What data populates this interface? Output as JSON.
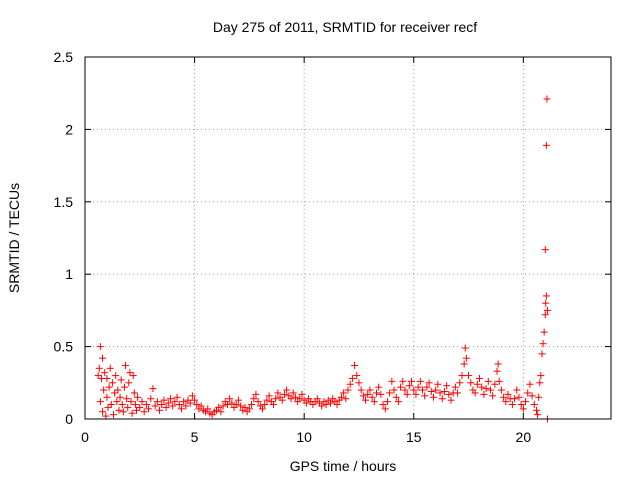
{
  "chart_data": {
    "type": "scatter",
    "title": "Day 275 of 2011, SRMTID for receiver recf",
    "xlabel": "GPS time / hours",
    "ylabel": "SRMTID / TECUs",
    "xlim": [
      0,
      24
    ],
    "ylim": [
      0,
      2.5
    ],
    "xticks": [
      0,
      5,
      10,
      15,
      20
    ],
    "yticks": [
      0,
      0.5,
      1,
      1.5,
      2,
      2.5
    ],
    "xtick_labels": [
      "0",
      "5",
      "10",
      "15",
      "20"
    ],
    "ytick_labels": [
      "0",
      "0.5",
      "1",
      "1.5",
      "2",
      "2.5"
    ],
    "grid": true,
    "marker": "plus",
    "color": "#ff0000",
    "series": [
      {
        "values": [
          [
            0.6,
            0.3
          ],
          [
            0.65,
            0.35
          ],
          [
            0.7,
            0.5
          ],
          [
            0.7,
            0.12
          ],
          [
            0.75,
            0.28
          ],
          [
            0.8,
            0.42
          ],
          [
            0.8,
            0.05
          ],
          [
            0.85,
            0.2
          ],
          [
            0.9,
            0.32
          ],
          [
            0.95,
            0.02
          ],
          [
            1.0,
            0.15
          ],
          [
            1.0,
            0.28
          ],
          [
            1.05,
            0.08
          ],
          [
            1.1,
            0.22
          ],
          [
            1.15,
            0.35
          ],
          [
            1.2,
            0.1
          ],
          [
            1.25,
            0.25
          ],
          [
            1.3,
            0.03
          ],
          [
            1.35,
            0.18
          ],
          [
            1.4,
            0.3
          ],
          [
            1.45,
            0.12
          ],
          [
            1.5,
            0.2
          ],
          [
            1.55,
            0.06
          ],
          [
            1.6,
            0.15
          ],
          [
            1.65,
            0.27
          ],
          [
            1.7,
            0.1
          ],
          [
            1.75,
            0.05
          ],
          [
            1.8,
            0.22
          ],
          [
            1.85,
            0.37
          ],
          [
            1.9,
            0.14
          ],
          [
            1.95,
            0.08
          ],
          [
            2.0,
            0.25
          ],
          [
            2.05,
            0.32
          ],
          [
            2.1,
            0.12
          ],
          [
            2.15,
            0.04
          ],
          [
            2.2,
            0.3
          ],
          [
            2.25,
            0.18
          ],
          [
            2.3,
            0.1
          ],
          [
            2.35,
            0.06
          ],
          [
            2.4,
            0.15
          ],
          [
            2.5,
            0.08
          ],
          [
            2.6,
            0.12
          ],
          [
            2.7,
            0.05
          ],
          [
            2.8,
            0.1
          ],
          [
            2.9,
            0.07
          ],
          [
            3.0,
            0.14
          ],
          [
            3.1,
            0.21
          ],
          [
            3.2,
            0.09
          ],
          [
            3.3,
            0.12
          ],
          [
            3.4,
            0.06
          ],
          [
            3.5,
            0.1
          ],
          [
            3.6,
            0.13
          ],
          [
            3.7,
            0.08
          ],
          [
            3.8,
            0.11
          ],
          [
            3.9,
            0.14
          ],
          [
            4.0,
            0.09
          ],
          [
            4.1,
            0.12
          ],
          [
            4.2,
            0.15
          ],
          [
            4.3,
            0.1
          ],
          [
            4.4,
            0.07
          ],
          [
            4.5,
            0.12
          ],
          [
            4.6,
            0.09
          ],
          [
            4.7,
            0.13
          ],
          [
            4.8,
            0.11
          ],
          [
            4.9,
            0.16
          ],
          [
            5.0,
            0.13
          ],
          [
            5.1,
            0.1
          ],
          [
            5.2,
            0.07
          ],
          [
            5.3,
            0.09
          ],
          [
            5.4,
            0.06
          ],
          [
            5.5,
            0.05
          ],
          [
            5.6,
            0.07
          ],
          [
            5.7,
            0.04
          ],
          [
            5.8,
            0.03
          ],
          [
            5.9,
            0.05
          ],
          [
            6.0,
            0.06
          ],
          [
            6.1,
            0.08
          ],
          [
            6.2,
            0.05
          ],
          [
            6.3,
            0.09
          ],
          [
            6.4,
            0.12
          ],
          [
            6.5,
            0.1
          ],
          [
            6.6,
            0.14
          ],
          [
            6.7,
            0.11
          ],
          [
            6.8,
            0.08
          ],
          [
            6.9,
            0.1
          ],
          [
            7.0,
            0.13
          ],
          [
            7.1,
            0.09
          ],
          [
            7.2,
            0.06
          ],
          [
            7.3,
            0.08
          ],
          [
            7.4,
            0.05
          ],
          [
            7.5,
            0.07
          ],
          [
            7.6,
            0.1
          ],
          [
            7.7,
            0.14
          ],
          [
            7.8,
            0.17
          ],
          [
            7.9,
            0.12
          ],
          [
            8.0,
            0.09
          ],
          [
            8.1,
            0.07
          ],
          [
            8.2,
            0.1
          ],
          [
            8.3,
            0.13
          ],
          [
            8.4,
            0.16
          ],
          [
            8.5,
            0.12
          ],
          [
            8.6,
            0.1
          ],
          [
            8.7,
            0.14
          ],
          [
            8.8,
            0.18
          ],
          [
            8.9,
            0.15
          ],
          [
            9.0,
            0.13
          ],
          [
            9.1,
            0.17
          ],
          [
            9.2,
            0.2
          ],
          [
            9.3,
            0.16
          ],
          [
            9.4,
            0.14
          ],
          [
            9.5,
            0.18
          ],
          [
            9.6,
            0.15
          ],
          [
            9.7,
            0.12
          ],
          [
            9.8,
            0.14
          ],
          [
            9.9,
            0.17
          ],
          [
            10.0,
            0.13
          ],
          [
            10.1,
            0.11
          ],
          [
            10.2,
            0.14
          ],
          [
            10.3,
            0.12
          ],
          [
            10.4,
            0.1
          ],
          [
            10.5,
            0.12
          ],
          [
            10.6,
            0.14
          ],
          [
            10.7,
            0.11
          ],
          [
            10.8,
            0.09
          ],
          [
            10.9,
            0.12
          ],
          [
            11.0,
            0.1
          ],
          [
            11.1,
            0.13
          ],
          [
            11.2,
            0.11
          ],
          [
            11.3,
            0.14
          ],
          [
            11.4,
            0.12
          ],
          [
            11.5,
            0.1
          ],
          [
            11.6,
            0.13
          ],
          [
            11.7,
            0.15
          ],
          [
            11.8,
            0.18
          ],
          [
            11.9,
            0.14
          ],
          [
            12.0,
            0.2
          ],
          [
            12.1,
            0.24
          ],
          [
            12.2,
            0.28
          ],
          [
            12.3,
            0.37
          ],
          [
            12.4,
            0.3
          ],
          [
            12.5,
            0.25
          ],
          [
            12.6,
            0.2
          ],
          [
            12.7,
            0.16
          ],
          [
            12.8,
            0.13
          ],
          [
            12.9,
            0.17
          ],
          [
            13.0,
            0.2
          ],
          [
            13.1,
            0.15
          ],
          [
            13.2,
            0.12
          ],
          [
            13.3,
            0.18
          ],
          [
            13.4,
            0.22
          ],
          [
            13.5,
            0.17
          ],
          [
            13.6,
            0.1
          ],
          [
            13.7,
            0.07
          ],
          [
            13.8,
            0.12
          ],
          [
            13.9,
            0.18
          ],
          [
            14.0,
            0.26
          ],
          [
            14.1,
            0.2
          ],
          [
            14.2,
            0.15
          ],
          [
            14.3,
            0.12
          ],
          [
            14.4,
            0.22
          ],
          [
            14.5,
            0.26
          ],
          [
            14.6,
            0.2
          ],
          [
            14.7,
            0.17
          ],
          [
            14.8,
            0.23
          ],
          [
            14.9,
            0.26
          ],
          [
            15.0,
            0.2
          ],
          [
            15.1,
            0.17
          ],
          [
            15.2,
            0.22
          ],
          [
            15.3,
            0.26
          ],
          [
            15.4,
            0.2
          ],
          [
            15.5,
            0.16
          ],
          [
            15.6,
            0.22
          ],
          [
            15.7,
            0.25
          ],
          [
            15.8,
            0.19
          ],
          [
            15.9,
            0.15
          ],
          [
            16.0,
            0.2
          ],
          [
            16.1,
            0.24
          ],
          [
            16.2,
            0.18
          ],
          [
            16.3,
            0.14
          ],
          [
            16.4,
            0.19
          ],
          [
            16.5,
            0.23
          ],
          [
            16.6,
            0.17
          ],
          [
            16.7,
            0.13
          ],
          [
            16.8,
            0.18
          ],
          [
            16.9,
            0.22
          ],
          [
            17.0,
            0.18
          ],
          [
            17.1,
            0.25
          ],
          [
            17.2,
            0.3
          ],
          [
            17.3,
            0.38
          ],
          [
            17.35,
            0.49
          ],
          [
            17.4,
            0.42
          ],
          [
            17.5,
            0.3
          ],
          [
            17.6,
            0.25
          ],
          [
            17.7,
            0.2
          ],
          [
            17.8,
            0.18
          ],
          [
            17.9,
            0.24
          ],
          [
            18.0,
            0.28
          ],
          [
            18.1,
            0.22
          ],
          [
            18.2,
            0.17
          ],
          [
            18.3,
            0.21
          ],
          [
            18.4,
            0.26
          ],
          [
            18.5,
            0.2
          ],
          [
            18.6,
            0.16
          ],
          [
            18.7,
            0.24
          ],
          [
            18.8,
            0.33
          ],
          [
            18.85,
            0.38
          ],
          [
            18.9,
            0.26
          ],
          [
            19.0,
            0.2
          ],
          [
            19.1,
            0.15
          ],
          [
            19.2,
            0.12
          ],
          [
            19.3,
            0.17
          ],
          [
            19.4,
            0.14
          ],
          [
            19.5,
            0.1
          ],
          [
            19.6,
            0.14
          ],
          [
            19.7,
            0.2
          ],
          [
            19.8,
            0.15
          ],
          [
            19.9,
            0.1
          ],
          [
            20.0,
            0.07
          ],
          [
            20.1,
            0.12
          ],
          [
            20.2,
            0.18
          ],
          [
            20.3,
            0.24
          ],
          [
            20.4,
            0.16
          ],
          [
            20.5,
            0.1
          ],
          [
            20.6,
            0.06
          ],
          [
            20.65,
            0.03
          ],
          [
            20.7,
            0.15
          ],
          [
            20.75,
            0.25
          ],
          [
            20.8,
            0.3
          ],
          [
            20.85,
            0.45
          ],
          [
            20.9,
            0.52
          ],
          [
            20.95,
            0.6
          ],
          [
            21.0,
            0.72
          ],
          [
            21.02,
            0.8
          ],
          [
            21.05,
            0.85
          ],
          [
            21.0,
            1.17
          ],
          [
            21.05,
            1.89
          ],
          [
            21.08,
            2.21
          ],
          [
            21.1,
            0.75
          ],
          [
            21.1,
            0.0
          ]
        ]
      }
    ]
  }
}
